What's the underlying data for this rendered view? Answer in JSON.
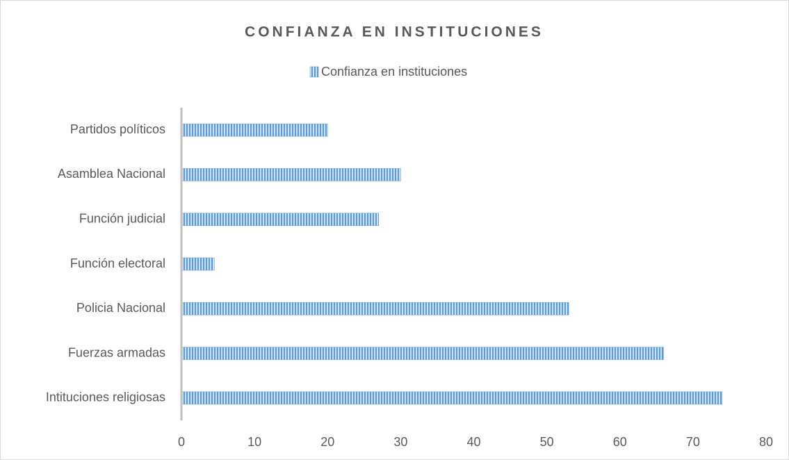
{
  "chart_data": {
    "type": "bar",
    "orientation": "horizontal",
    "title": "CONFIANZA EN INSTITUCIONES",
    "categories": [
      "Partidos políticos",
      "Asamblea Nacional",
      "Función judicial",
      "Función electoral",
      "Policia Nacional",
      "Fuerzas armadas",
      "Intituciones religiosas"
    ],
    "series": [
      {
        "name": "Confianza en instituciones",
        "color": "#5b9bd5",
        "values": [
          20,
          30,
          27,
          4.5,
          53,
          66,
          74
        ]
      }
    ],
    "xlim": [
      0,
      80
    ],
    "xticks": [
      0,
      10,
      20,
      30,
      40,
      50,
      60,
      70,
      80
    ],
    "grid": false,
    "legend": "top"
  }
}
